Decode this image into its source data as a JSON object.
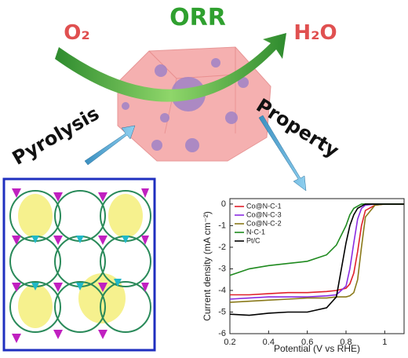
{
  "labels": {
    "reactant": "O₂",
    "reaction": "ORR",
    "product": "H₂O",
    "left_step": "Pyrolysis",
    "right_step": "Property"
  },
  "chart_data": {
    "type": "line",
    "x_label": "Potential (V vs RHE)",
    "y_label": "Current density (mA cm⁻²)",
    "x": [
      0.2,
      0.3,
      0.4,
      0.5,
      0.6,
      0.7,
      0.75,
      0.8,
      0.82,
      0.84,
      0.86,
      0.88,
      0.9,
      0.95,
      1.0,
      1.05,
      1.1
    ],
    "series": [
      {
        "name": "Co@N-C-1",
        "color": "#e0202a",
        "values": [
          -4.2,
          -4.2,
          -4.15,
          -4.1,
          -4.1,
          -4.05,
          -4.0,
          -3.9,
          -3.7,
          -3.2,
          -2.2,
          -1.0,
          -0.3,
          -0.05,
          0,
          0,
          0
        ]
      },
      {
        "name": "Co@N-C-3",
        "color": "#8a2be2",
        "values": [
          -4.4,
          -4.35,
          -4.3,
          -4.3,
          -4.3,
          -4.25,
          -4.2,
          -3.8,
          -3.0,
          -1.8,
          -0.7,
          -0.2,
          -0.05,
          0,
          0,
          0,
          0
        ]
      },
      {
        "name": "Co@N-C-2",
        "color": "#8a7a1a",
        "values": [
          -4.55,
          -4.5,
          -4.45,
          -4.4,
          -4.35,
          -4.35,
          -4.3,
          -4.3,
          -4.25,
          -4.1,
          -3.5,
          -2.0,
          -0.6,
          -0.05,
          0,
          0,
          0
        ]
      },
      {
        "name": "N-C-1",
        "color": "#1f8a1f",
        "values": [
          -3.3,
          -3.0,
          -2.85,
          -2.75,
          -2.65,
          -2.35,
          -1.9,
          -1.0,
          -0.5,
          -0.2,
          -0.1,
          0,
          0,
          0,
          0,
          0,
          0
        ]
      },
      {
        "name": "Pt/C",
        "color": "#000000",
        "values": [
          -5.1,
          -5.15,
          -5.05,
          -5.0,
          -5.0,
          -4.8,
          -4.3,
          -1.8,
          -1.0,
          -0.5,
          -0.2,
          -0.1,
          0,
          0,
          0,
          0,
          0
        ]
      }
    ],
    "xlim": [
      0.2,
      1.1
    ],
    "ylim": [
      -6,
      0.25
    ],
    "xticks": [
      0.2,
      0.4,
      0.6,
      0.8,
      1.0
    ],
    "yticks": [
      0,
      -1,
      -2,
      -3,
      -4,
      -5,
      -6
    ],
    "legend": "upper left"
  }
}
